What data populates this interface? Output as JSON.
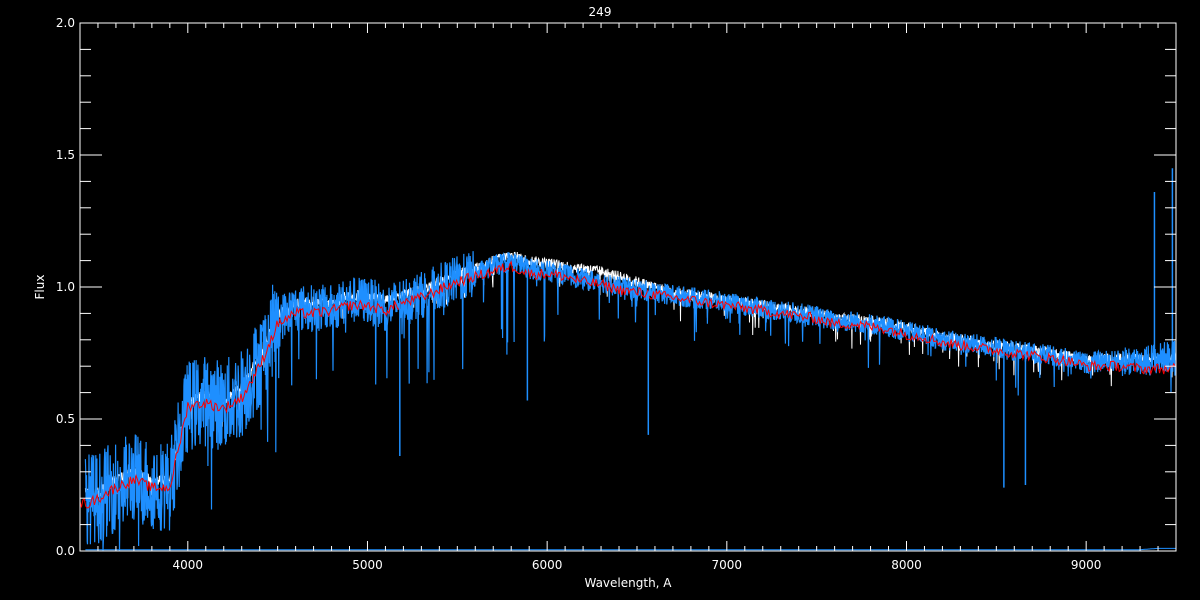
{
  "chart_data": {
    "type": "line",
    "title": "249",
    "xlabel": "Wavelength, A",
    "ylabel": "Flux",
    "xlim": [
      3400,
      9500
    ],
    "ylim": [
      0,
      2.0
    ],
    "xticks": [
      4000,
      5000,
      6000,
      7000,
      8000,
      9000
    ],
    "xtick_labels": [
      "4000",
      "5000",
      "6000",
      "7000",
      "8000",
      "9000"
    ],
    "yticks": [
      0,
      0.5,
      1.0,
      1.5,
      2.0
    ],
    "ytick_labels": [
      "0.0",
      "0.5",
      "1.0",
      "1.5",
      "2.0"
    ],
    "grid": false,
    "background": "#000000",
    "x": [
      3450,
      3500,
      3600,
      3700,
      3800,
      3900,
      4000,
      4100,
      4200,
      4300,
      4400,
      4500,
      4600,
      4700,
      4800,
      4900,
      5000,
      5100,
      5200,
      5300,
      5400,
      5500,
      5600,
      5700,
      5800,
      5900,
      6000,
      6100,
      6200,
      6300,
      6400,
      6500,
      6600,
      6700,
      6800,
      6900,
      7000,
      7100,
      7200,
      7300,
      7400,
      7500,
      7600,
      7700,
      7800,
      7900,
      8000,
      8100,
      8200,
      8300,
      8400,
      8500,
      8600,
      8700,
      8800,
      8900,
      9000,
      9100,
      9200,
      9300,
      9400,
      9500
    ],
    "series": [
      {
        "color": "#ffffff",
        "values": [
          0.22,
          0.22,
          0.27,
          0.3,
          0.27,
          0.27,
          0.57,
          0.59,
          0.57,
          0.62,
          0.74,
          0.9,
          0.94,
          0.94,
          0.94,
          0.97,
          0.97,
          0.95,
          0.97,
          0.99,
          1.02,
          1.05,
          1.07,
          1.1,
          1.12,
          1.1,
          1.09,
          1.08,
          1.07,
          1.06,
          1.04,
          1.02,
          1.0,
          0.98,
          0.97,
          0.96,
          0.95,
          0.94,
          0.93,
          0.92,
          0.91,
          0.9,
          0.88,
          0.88,
          0.87,
          0.86,
          0.85,
          0.83,
          0.81,
          0.8,
          0.79,
          0.78,
          0.77,
          0.76,
          0.75,
          0.74,
          0.72,
          0.73,
          0.73,
          0.73,
          0.73,
          0.73
        ]
      },
      {
        "color": "#1e8fff",
        "values": [
          0.2,
          0.2,
          0.25,
          0.28,
          0.25,
          0.25,
          0.55,
          0.57,
          0.55,
          0.6,
          0.72,
          0.88,
          0.92,
          0.92,
          0.92,
          0.95,
          0.95,
          0.92,
          0.95,
          0.97,
          1.0,
          1.03,
          1.05,
          1.08,
          1.1,
          1.07,
          1.06,
          1.05,
          1.03,
          1.02,
          1.0,
          0.99,
          0.98,
          0.97,
          0.96,
          0.95,
          0.94,
          0.93,
          0.92,
          0.91,
          0.9,
          0.89,
          0.87,
          0.87,
          0.86,
          0.85,
          0.83,
          0.82,
          0.8,
          0.79,
          0.78,
          0.77,
          0.76,
          0.75,
          0.74,
          0.73,
          0.71,
          0.72,
          0.72,
          0.72,
          0.73,
          0.74
        ]
      },
      {
        "color": "#ff0000",
        "values": [
          0.18,
          0.2,
          0.24,
          0.27,
          0.24,
          0.24,
          0.55,
          0.56,
          0.54,
          0.58,
          0.7,
          0.86,
          0.9,
          0.9,
          0.91,
          0.93,
          0.93,
          0.91,
          0.94,
          0.96,
          0.99,
          1.02,
          1.04,
          1.06,
          1.08,
          1.05,
          1.05,
          1.04,
          1.02,
          1.01,
          0.99,
          0.98,
          0.97,
          0.96,
          0.95,
          0.94,
          0.93,
          0.92,
          0.91,
          0.9,
          0.89,
          0.88,
          0.86,
          0.86,
          0.85,
          0.84,
          0.82,
          0.81,
          0.79,
          0.78,
          0.77,
          0.76,
          0.75,
          0.74,
          0.73,
          0.72,
          0.7,
          0.7,
          0.7,
          0.69,
          0.69,
          0.69
        ]
      },
      {
        "color": "#1e8fff",
        "values": [
          0.005,
          0.005,
          0.005,
          0.005,
          0.005,
          0.005,
          0.005,
          0.005,
          0.005,
          0.005,
          0.005,
          0.005,
          0.005,
          0.005,
          0.005,
          0.005,
          0.005,
          0.005,
          0.005,
          0.005,
          0.005,
          0.005,
          0.005,
          0.005,
          0.005,
          0.005,
          0.005,
          0.005,
          0.005,
          0.005,
          0.005,
          0.005,
          0.005,
          0.005,
          0.005,
          0.005,
          0.005,
          0.005,
          0.005,
          0.005,
          0.005,
          0.005,
          0.005,
          0.005,
          0.005,
          0.005,
          0.005,
          0.005,
          0.005,
          0.005,
          0.005,
          0.005,
          0.005,
          0.005,
          0.005,
          0.005,
          0.005,
          0.005,
          0.005,
          0.005,
          0.01,
          0.01
        ]
      }
    ]
  }
}
